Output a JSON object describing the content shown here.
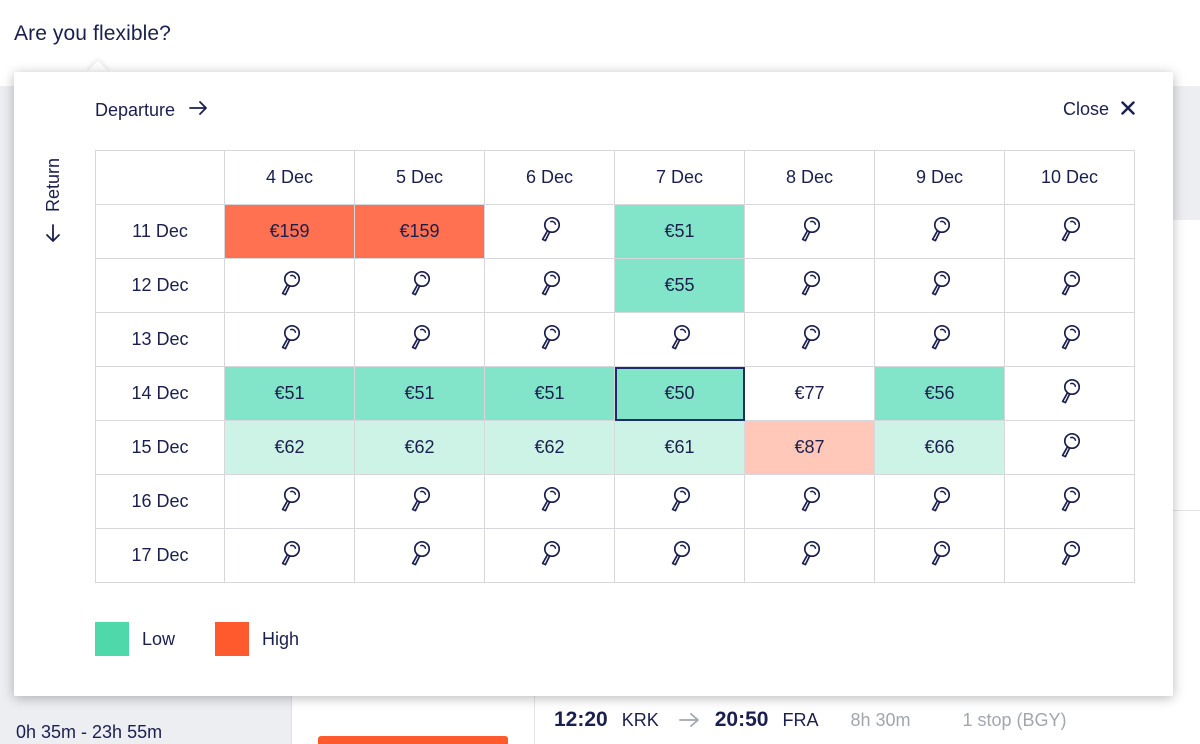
{
  "page": {
    "heading": "Are you flexible?"
  },
  "popover": {
    "departure_label": "Departure",
    "return_label": "Return",
    "close_label": "Close",
    "columns": [
      "4 Dec",
      "5 Dec",
      "6 Dec",
      "7 Dec",
      "8 Dec",
      "9 Dec",
      "10 Dec"
    ],
    "rows": [
      {
        "label": "11 Dec",
        "cells": [
          {
            "price": "€159",
            "level": "high"
          },
          {
            "price": "€159",
            "level": "high"
          },
          {
            "price": null,
            "level": "none"
          },
          {
            "price": "€51",
            "level": "low"
          },
          {
            "price": null,
            "level": "none"
          },
          {
            "price": null,
            "level": "none"
          },
          {
            "price": null,
            "level": "none"
          }
        ]
      },
      {
        "label": "12 Dec",
        "cells": [
          {
            "price": null,
            "level": "none"
          },
          {
            "price": null,
            "level": "none"
          },
          {
            "price": null,
            "level": "none"
          },
          {
            "price": "€55",
            "level": "low"
          },
          {
            "price": null,
            "level": "none"
          },
          {
            "price": null,
            "level": "none"
          },
          {
            "price": null,
            "level": "none"
          }
        ]
      },
      {
        "label": "13 Dec",
        "cells": [
          {
            "price": null,
            "level": "none"
          },
          {
            "price": null,
            "level": "none"
          },
          {
            "price": null,
            "level": "none"
          },
          {
            "price": null,
            "level": "none"
          },
          {
            "price": null,
            "level": "none"
          },
          {
            "price": null,
            "level": "none"
          },
          {
            "price": null,
            "level": "none"
          }
        ]
      },
      {
        "label": "14 Dec",
        "cells": [
          {
            "price": "€51",
            "level": "low"
          },
          {
            "price": "€51",
            "level": "low"
          },
          {
            "price": "€51",
            "level": "low"
          },
          {
            "price": "€50",
            "level": "low",
            "selected": true
          },
          {
            "price": "€77",
            "level": "neutral"
          },
          {
            "price": "€56",
            "level": "low"
          },
          {
            "price": null,
            "level": "none"
          }
        ]
      },
      {
        "label": "15 Dec",
        "cells": [
          {
            "price": "€62",
            "level": "lowlight"
          },
          {
            "price": "€62",
            "level": "lowlight"
          },
          {
            "price": "€62",
            "level": "lowlight"
          },
          {
            "price": "€61",
            "level": "lowlight"
          },
          {
            "price": "€87",
            "level": "highlight"
          },
          {
            "price": "€66",
            "level": "lowlight"
          },
          {
            "price": null,
            "level": "none"
          }
        ]
      },
      {
        "label": "16 Dec",
        "cells": [
          {
            "price": null,
            "level": "none"
          },
          {
            "price": null,
            "level": "none"
          },
          {
            "price": null,
            "level": "none"
          },
          {
            "price": null,
            "level": "none"
          },
          {
            "price": null,
            "level": "none"
          },
          {
            "price": null,
            "level": "none"
          },
          {
            "price": null,
            "level": "none"
          }
        ]
      },
      {
        "label": "17 Dec",
        "cells": [
          {
            "price": null,
            "level": "none"
          },
          {
            "price": null,
            "level": "none"
          },
          {
            "price": null,
            "level": "none"
          },
          {
            "price": null,
            "level": "none"
          },
          {
            "price": null,
            "level": "none"
          },
          {
            "price": null,
            "level": "none"
          },
          {
            "price": null,
            "level": "none"
          }
        ]
      }
    ],
    "empty_cell_icon": "map-pin-search-icon",
    "legend": [
      {
        "label": "Low",
        "color": "#4fd8aa"
      },
      {
        "label": "High",
        "color": "#ff5a2e"
      }
    ],
    "colors": {
      "low": "#82e4c8",
      "lowlight": "#ccf3e6",
      "high": "#ff7150",
      "highlight": "#ffc8b8",
      "selected_border": "#1b2d6b"
    }
  },
  "background": {
    "duration_range": "0h 35m - 23h 55m",
    "flight": {
      "depart_time": "12:20",
      "from_code": "KRK",
      "arrive_time": "20:50",
      "to_code": "FRA",
      "duration": "8h 30m",
      "stops": "1 stop (BGY)"
    }
  }
}
